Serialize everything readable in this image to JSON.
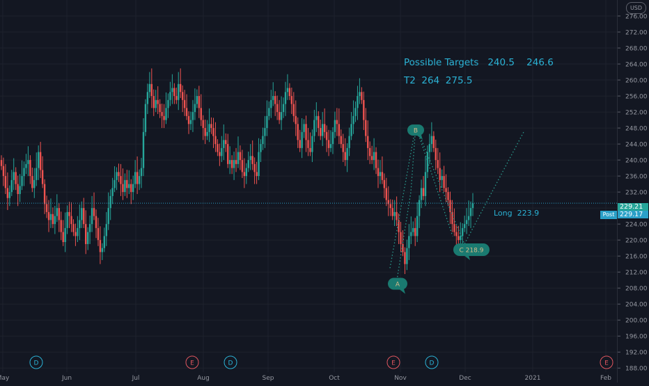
{
  "chart_data": {
    "type": "candlestick",
    "currency": "USD",
    "months": [
      "May",
      "Jun",
      "Jul",
      "Aug",
      "Sep",
      "Oct",
      "Nov",
      "Dec",
      "2021",
      "Feb"
    ],
    "yticks": [
      "188.00",
      "192.00",
      "196.00",
      "200.00",
      "204.00",
      "208.00",
      "212.00",
      "216.00",
      "220.00",
      "224.00",
      "228.00",
      "232.00",
      "236.00",
      "240.00",
      "244.00",
      "248.00",
      "252.00",
      "256.00",
      "260.00",
      "264.00",
      "268.00",
      "272.00",
      "276.00"
    ],
    "ylim": [
      187,
      280
    ],
    "last_price": "229.21",
    "post_price": "229.17",
    "post_label": "Post",
    "closes": [
      238.5,
      236,
      233,
      230.5,
      232,
      235,
      237,
      234,
      231.5,
      233.5,
      236,
      238,
      239,
      240,
      236,
      233,
      235,
      238,
      242,
      237.5,
      234,
      229,
      227,
      225,
      226.5,
      224,
      226,
      228,
      225,
      222,
      219.5,
      223,
      227,
      226,
      224,
      222,
      221,
      223,
      225,
      228,
      224,
      219,
      222,
      224,
      228,
      226,
      223,
      220,
      217,
      218,
      221,
      224,
      228,
      231,
      233,
      235,
      237,
      236,
      234,
      232,
      235,
      233,
      234,
      232,
      234,
      237,
      234,
      236,
      238,
      247,
      254,
      257,
      259,
      256,
      253,
      255,
      254,
      252,
      251,
      250,
      253,
      255,
      257,
      258,
      256,
      255,
      259,
      257,
      255,
      253,
      251,
      249,
      250,
      252,
      254,
      256,
      253,
      250,
      248,
      246,
      247,
      249,
      248,
      246,
      244,
      242,
      241,
      243,
      245,
      244,
      239,
      240,
      238,
      240,
      239,
      242,
      240,
      237,
      236,
      238,
      240,
      241,
      239,
      237,
      236,
      242,
      244,
      246,
      248,
      251,
      253,
      255,
      256,
      254,
      252,
      250,
      252,
      254,
      257,
      258,
      256,
      254,
      251,
      249,
      245,
      243,
      247,
      249,
      245,
      243,
      242,
      246,
      250,
      251,
      248,
      246,
      249,
      247,
      245,
      243,
      244,
      247,
      250,
      249,
      246,
      244,
      242,
      240,
      243,
      246,
      249,
      251,
      253,
      256,
      257,
      255,
      250,
      246,
      243,
      241,
      240,
      242,
      238,
      236,
      237,
      235,
      233,
      230,
      229,
      228,
      226,
      227,
      225,
      222,
      219,
      217,
      214,
      218,
      221,
      222,
      223,
      221,
      226,
      230,
      233,
      231,
      237,
      242,
      244,
      246,
      243,
      240,
      238,
      235,
      236,
      233,
      232,
      230,
      227,
      224,
      222,
      221,
      220,
      221,
      223,
      224,
      225,
      226,
      228,
      229.2
    ],
    "annotations": {
      "targets": "Possible Targets   240.5    246.6",
      "t2": "T2  264  275.5",
      "long": "Long  223.9",
      "point_a": "A",
      "point_b": "B",
      "point_c": "C 218.9"
    },
    "events": [
      {
        "label": "D",
        "type": "dividend"
      },
      {
        "label": "E",
        "type": "earnings"
      },
      {
        "label": "D",
        "type": "dividend"
      },
      {
        "label": "E",
        "type": "earnings"
      },
      {
        "label": "D",
        "type": "dividend"
      },
      {
        "label": "E",
        "type": "earnings"
      }
    ],
    "colors": {
      "up": "#26a69a",
      "down": "#ef5350",
      "background": "#131722",
      "grid": "#1e222d",
      "annotation": "#2bb3d6",
      "pattern": "#1a7a70",
      "last_price": "#26a69a"
    },
    "grid": true
  }
}
